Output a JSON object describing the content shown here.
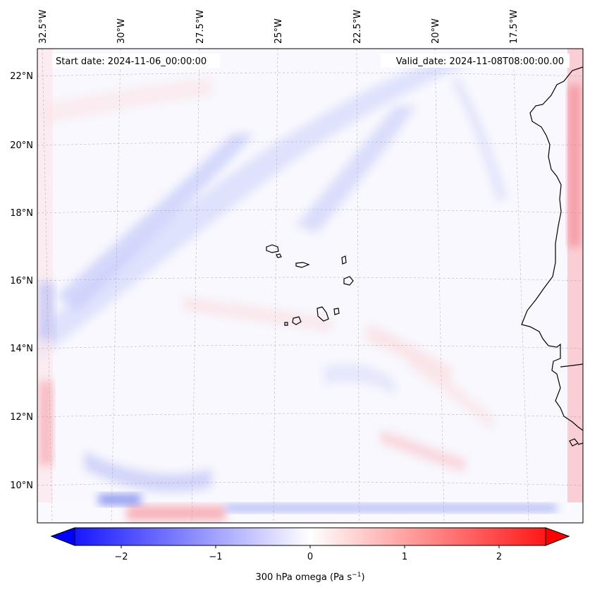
{
  "map": {
    "start_date": "Start date: 2024-11-06_00:00:00",
    "valid_date": "Valid_date: 2024-11-08T08:00:00.00",
    "lon_labels": [
      "32.5°W",
      "30°W",
      "27.5°W",
      "25°W",
      "22.5°W",
      "20°W",
      "17.5°W"
    ],
    "lat_labels": [
      "22°N",
      "20°N",
      "18°N",
      "16°N",
      "14°N",
      "12°N",
      "10°N"
    ],
    "field": "omega",
    "colormap": "bwr"
  },
  "colorbar": {
    "label": "300 hPa omega (Pa s",
    "label_sup": "−1",
    "label_close": ")",
    "ticks": [
      "−2",
      "−1",
      "0",
      "1",
      "2"
    ],
    "range": [
      -2.6,
      2.6
    ],
    "extend": "both",
    "min_color": "#0000ff",
    "mid_color": "#ffffff",
    "max_color": "#ff0000"
  }
}
